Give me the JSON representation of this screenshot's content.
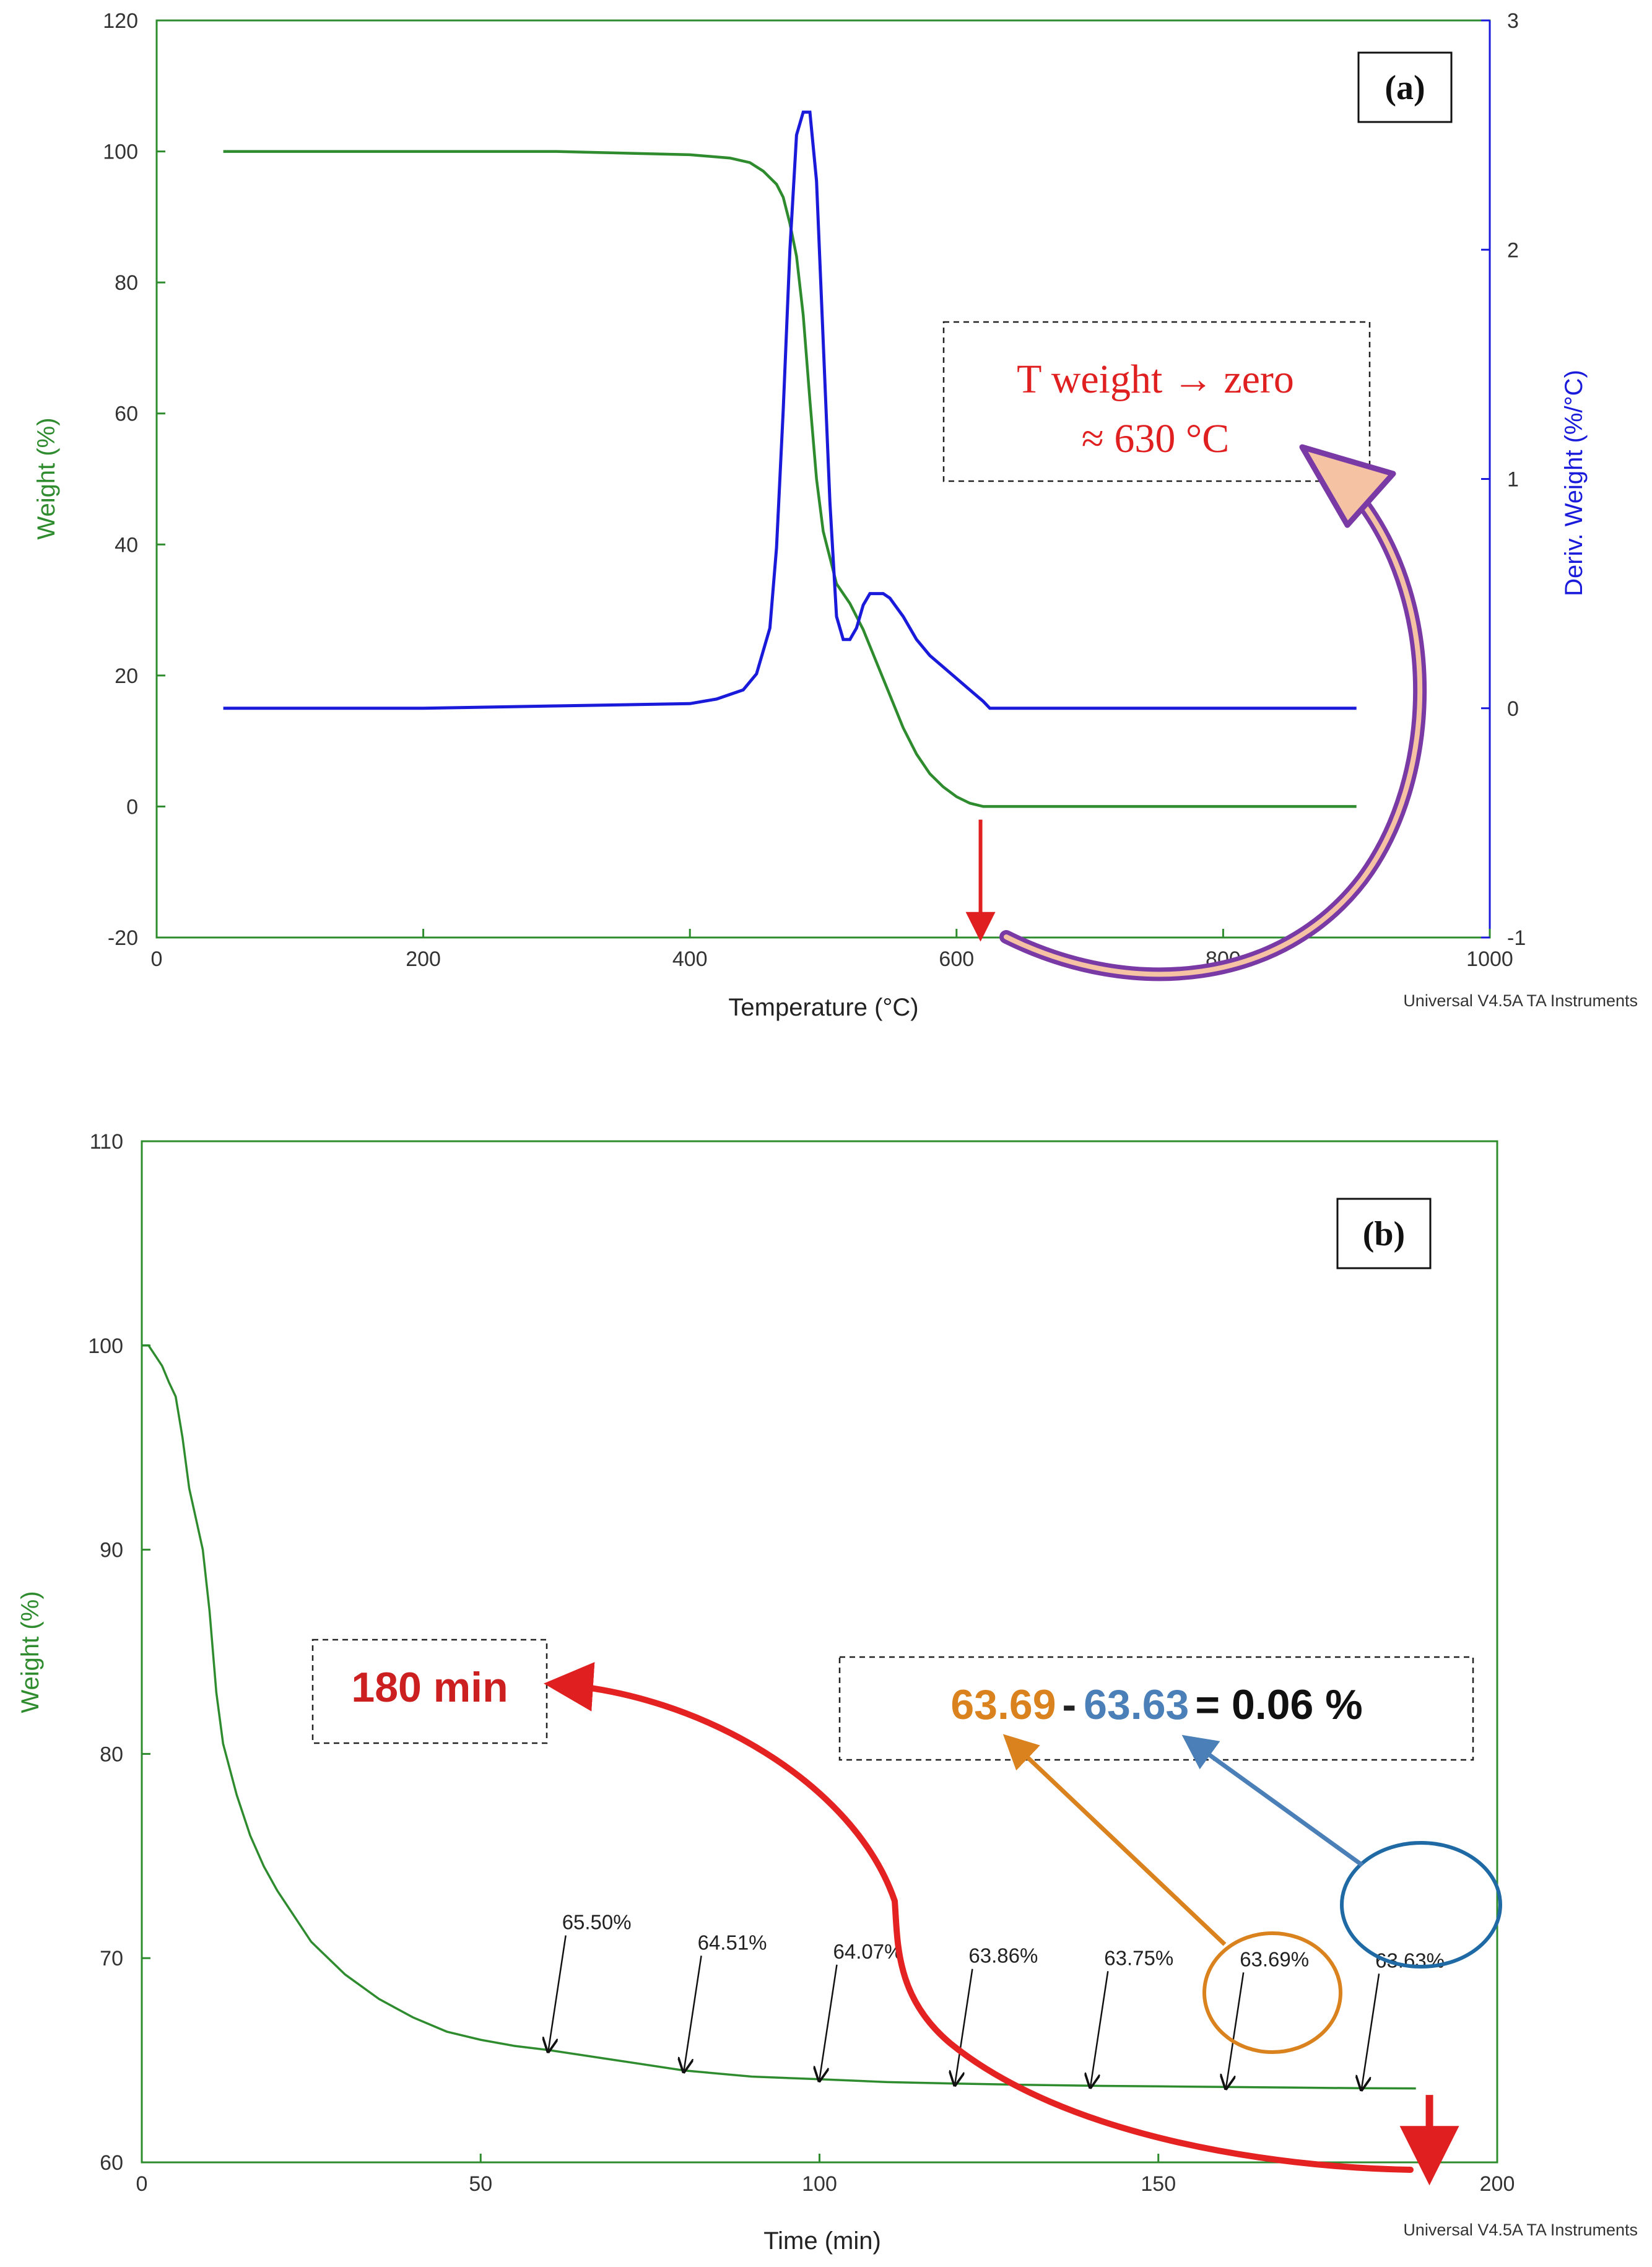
{
  "chart_data": [
    {
      "id": "a",
      "type": "line",
      "panel_label": "(a)",
      "xlabel": "Temperature (°C)",
      "ylabel": "Weight (%)",
      "y2label": "Deriv. Weight (%/°C)",
      "xlim": [
        0,
        1000
      ],
      "ylim": [
        -20,
        120
      ],
      "y2lim": [
        -1,
        3
      ],
      "xticks": [
        0,
        200,
        400,
        600,
        800,
        1000
      ],
      "yticks": [
        -20,
        0,
        20,
        40,
        60,
        80,
        100,
        120
      ],
      "y2ticks": [
        -1,
        0,
        1,
        2,
        3
      ],
      "credit": "Universal V4.5A TA Instruments",
      "annotation": {
        "line1": "T weight → zero",
        "line2": "≈ 630 °C",
        "marker_x": 618
      },
      "series": [
        {
          "name": "Weight",
          "axis": "left",
          "color": "#2e8b2e",
          "x": [
            50,
            100,
            200,
            300,
            400,
            430,
            445,
            455,
            465,
            470,
            475,
            480,
            485,
            490,
            495,
            500,
            505,
            510,
            520,
            530,
            540,
            550,
            560,
            570,
            580,
            590,
            600,
            610,
            620,
            625,
            650,
            700,
            800,
            900
          ],
          "y": [
            100,
            100,
            100,
            100,
            99.5,
            99,
            98.3,
            97,
            95,
            93,
            89,
            84,
            75,
            62,
            50,
            42,
            38,
            34,
            31,
            27,
            22,
            17,
            12,
            8,
            5,
            3,
            1.5,
            0.5,
            0,
            0,
            0,
            0,
            0,
            0
          ]
        },
        {
          "name": "Deriv. Weight",
          "axis": "right",
          "color": "#1a1adb",
          "x": [
            50,
            100,
            200,
            300,
            400,
            420,
            440,
            450,
            460,
            465,
            470,
            475,
            480,
            485,
            490,
            495,
            500,
            505,
            510,
            515,
            520,
            525,
            530,
            535,
            540,
            545,
            550,
            555,
            560,
            570,
            580,
            590,
            600,
            610,
            620,
            625,
            650,
            700,
            800,
            900
          ],
          "y": [
            0,
            0,
            0,
            0.01,
            0.02,
            0.04,
            0.08,
            0.15,
            0.35,
            0.7,
            1.3,
            2.0,
            2.5,
            2.6,
            2.6,
            2.3,
            1.6,
            0.9,
            0.4,
            0.3,
            0.3,
            0.35,
            0.45,
            0.5,
            0.5,
            0.5,
            0.48,
            0.44,
            0.4,
            0.3,
            0.23,
            0.18,
            0.13,
            0.08,
            0.03,
            0,
            0,
            0,
            0,
            0
          ]
        }
      ]
    },
    {
      "id": "b",
      "type": "line",
      "panel_label": "(b)",
      "xlabel": "Time (min)",
      "ylabel": "Weight (%)",
      "xlim": [
        0,
        200
      ],
      "ylim": [
        60,
        110
      ],
      "xticks": [
        0,
        50,
        100,
        150,
        200
      ],
      "yticks": [
        60,
        70,
        80,
        90,
        100,
        110
      ],
      "credit": "Universal V4.5A TA Instruments",
      "series": [
        {
          "name": "Weight",
          "color": "#2e8b2e",
          "x": [
            0,
            1,
            2,
            3,
            4,
            5,
            6,
            7,
            8,
            9,
            10,
            11,
            12,
            14,
            16,
            18,
            20,
            25,
            30,
            35,
            40,
            45,
            50,
            55,
            60,
            70,
            80,
            90,
            100,
            110,
            120,
            130,
            140,
            150,
            160,
            170,
            180,
            188
          ],
          "y": [
            100,
            100,
            99.5,
            99,
            98.2,
            97.5,
            95.5,
            93,
            91.5,
            90,
            87,
            83,
            80.5,
            78,
            76,
            74.5,
            73.3,
            70.8,
            69.2,
            68,
            67.1,
            66.4,
            66,
            65.7,
            65.5,
            65,
            64.5,
            64.2,
            64.07,
            63.93,
            63.86,
            63.8,
            63.75,
            63.72,
            63.69,
            63.66,
            63.63,
            63.62
          ]
        }
      ],
      "point_labels": [
        {
          "x": 60,
          "y": 65.5,
          "label": "65.50%"
        },
        {
          "x": 80,
          "y": 64.51,
          "label": "64.51%"
        },
        {
          "x": 100,
          "y": 64.07,
          "label": "64.07%"
        },
        {
          "x": 120,
          "y": 63.86,
          "label": "63.86%"
        },
        {
          "x": 140,
          "y": 63.75,
          "label": "63.75%"
        },
        {
          "x": 160,
          "y": 63.69,
          "label": "63.69%"
        },
        {
          "x": 180,
          "y": 63.63,
          "label": "63.63%"
        }
      ],
      "annotations": {
        "time_label": "180 min",
        "eq_a": "63.69",
        "eq_minus": "-",
        "eq_b": "63.63",
        "eq_result": "= 0.06 %",
        "marker_x": 190
      }
    }
  ]
}
